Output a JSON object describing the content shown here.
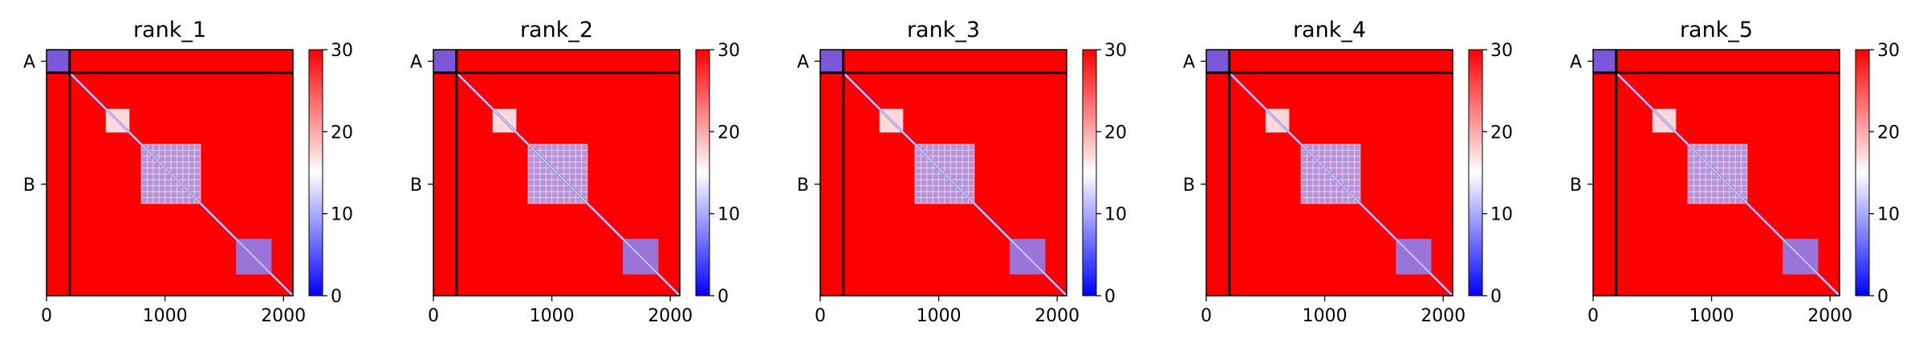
{
  "chart_data": [
    {
      "type": "heatmap",
      "title": "rank_1",
      "xticks": [
        0,
        1000,
        2000
      ],
      "xlim": [
        0,
        2080
      ],
      "chain_labels": [
        "A",
        "B"
      ],
      "chain_ranges": [
        [
          0,
          195
        ],
        [
          195,
          2080
        ]
      ],
      "chain_boundary": 195,
      "colorbar": {
        "vmin": 0,
        "vmax": 30,
        "ticks": [
          0,
          10,
          20,
          30
        ],
        "colormap": [
          "#0000ff",
          "#ffffff",
          "#ff0000"
        ]
      },
      "blocks": [
        {
          "range": [
            0,
            195
          ],
          "value": 6
        },
        {
          "range": [
            500,
            700
          ],
          "value": 15
        },
        {
          "range": [
            800,
            1300
          ],
          "value": 10
        },
        {
          "range": [
            1600,
            1900
          ],
          "value": 8
        }
      ]
    },
    {
      "type": "heatmap",
      "title": "rank_2",
      "xticks": [
        0,
        1000,
        2000
      ],
      "xlim": [
        0,
        2080
      ],
      "chain_labels": [
        "A",
        "B"
      ],
      "chain_ranges": [
        [
          0,
          195
        ],
        [
          195,
          2080
        ]
      ],
      "chain_boundary": 195,
      "colorbar": {
        "vmin": 0,
        "vmax": 30,
        "ticks": [
          0,
          10,
          20,
          30
        ],
        "colormap": [
          "#0000ff",
          "#ffffff",
          "#ff0000"
        ]
      },
      "blocks": [
        {
          "range": [
            0,
            195
          ],
          "value": 6
        },
        {
          "range": [
            500,
            700
          ],
          "value": 15
        },
        {
          "range": [
            800,
            1300
          ],
          "value": 10
        },
        {
          "range": [
            1600,
            1900
          ],
          "value": 8
        }
      ]
    },
    {
      "type": "heatmap",
      "title": "rank_3",
      "xticks": [
        0,
        1000,
        2000
      ],
      "xlim": [
        0,
        2080
      ],
      "chain_labels": [
        "A",
        "B"
      ],
      "chain_ranges": [
        [
          0,
          195
        ],
        [
          195,
          2080
        ]
      ],
      "chain_boundary": 195,
      "colorbar": {
        "vmin": 0,
        "vmax": 30,
        "ticks": [
          0,
          10,
          20,
          30
        ],
        "colormap": [
          "#0000ff",
          "#ffffff",
          "#ff0000"
        ]
      },
      "blocks": [
        {
          "range": [
            0,
            195
          ],
          "value": 6
        },
        {
          "range": [
            500,
            700
          ],
          "value": 15
        },
        {
          "range": [
            800,
            1300
          ],
          "value": 10
        },
        {
          "range": [
            1600,
            1900
          ],
          "value": 8
        }
      ]
    },
    {
      "type": "heatmap",
      "title": "rank_4",
      "xticks": [
        0,
        1000,
        2000
      ],
      "xlim": [
        0,
        2080
      ],
      "chain_labels": [
        "A",
        "B"
      ],
      "chain_ranges": [
        [
          0,
          195
        ],
        [
          195,
          2080
        ]
      ],
      "chain_boundary": 195,
      "colorbar": {
        "vmin": 0,
        "vmax": 30,
        "ticks": [
          0,
          10,
          20,
          30
        ],
        "colormap": [
          "#0000ff",
          "#ffffff",
          "#ff0000"
        ]
      },
      "blocks": [
        {
          "range": [
            0,
            195
          ],
          "value": 6
        },
        {
          "range": [
            500,
            700
          ],
          "value": 15
        },
        {
          "range": [
            800,
            1300
          ],
          "value": 10
        },
        {
          "range": [
            1600,
            1900
          ],
          "value": 8
        }
      ]
    },
    {
      "type": "heatmap",
      "title": "rank_5",
      "xticks": [
        0,
        1000,
        2000
      ],
      "xlim": [
        0,
        2080
      ],
      "chain_labels": [
        "A",
        "B"
      ],
      "chain_ranges": [
        [
          0,
          195
        ],
        [
          195,
          2080
        ]
      ],
      "chain_boundary": 195,
      "colorbar": {
        "vmin": 0,
        "vmax": 30,
        "ticks": [
          0,
          10,
          20,
          30
        ],
        "colormap": [
          "#0000ff",
          "#ffffff",
          "#ff0000"
        ]
      },
      "blocks": [
        {
          "range": [
            0,
            195
          ],
          "value": 6
        },
        {
          "range": [
            500,
            700
          ],
          "value": 15
        },
        {
          "range": [
            800,
            1300
          ],
          "value": 10
        },
        {
          "range": [
            1600,
            1900
          ],
          "value": 8
        }
      ]
    }
  ]
}
